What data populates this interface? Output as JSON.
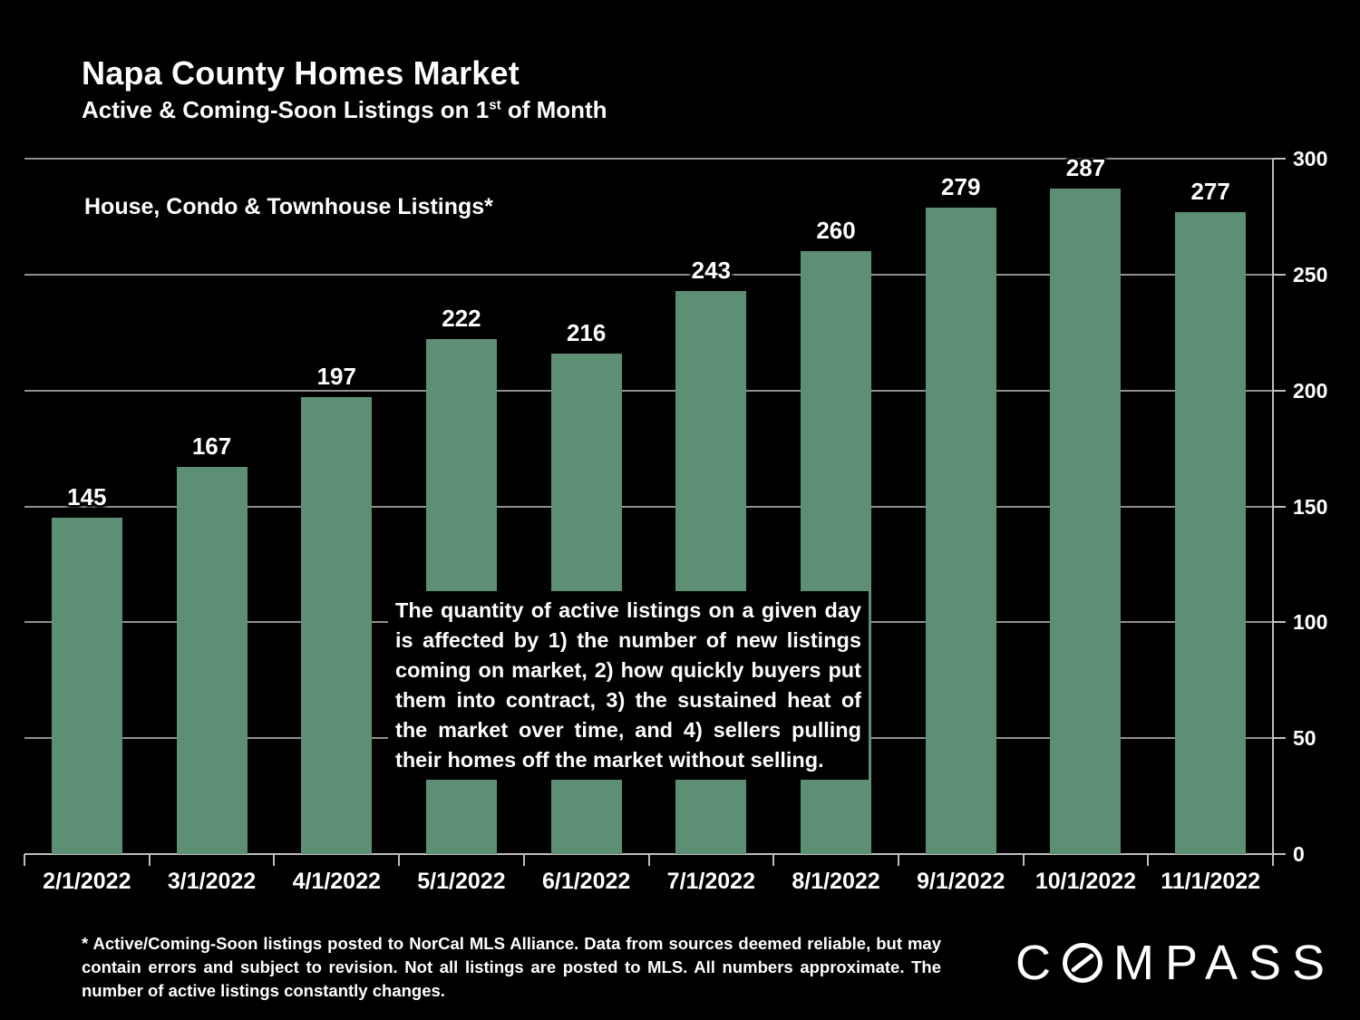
{
  "title": "Napa County Homes Market",
  "subtitle": {
    "pre": "Active & Coming-Soon Listings on 1",
    "sup": "st",
    "post": " of Month"
  },
  "series_label": "House, Condo & Townhouse Listings*",
  "annotation": {
    "lines": [
      "The quantity of active listings on a given day",
      "is affected by 1) the number of new listings",
      "coming on market, 2) how quickly buyers put",
      "them into contract, 3) the sustained heat of",
      "the market over time, and 4) sellers pulling",
      "their homes off the market without selling."
    ]
  },
  "footnote": {
    "lines": [
      "* Active/Coming-Soon listings posted to NorCal MLS Alliance.  Data from sources deemed reliable, but may",
      "contain errors and subject to revision.  Not all listings are posted to MLS. All numbers approximate. The",
      "number of active listings constantly changes."
    ]
  },
  "logo": {
    "prefix": "C",
    "suffix": "MPASS"
  },
  "colors": {
    "background": "#000000",
    "bar": "#5d8f75",
    "gridline": "#8f8f8f",
    "axis": "#bdbdbd",
    "text": "#ffffff"
  },
  "chart_data": {
    "type": "bar",
    "title": "Napa County Homes Market",
    "subtitle": "Active & Coming-Soon Listings on 1st of Month",
    "series_label": "House, Condo & Townhouse Listings*",
    "categories": [
      "2/1/2022",
      "3/1/2022",
      "4/1/2022",
      "5/1/2022",
      "6/1/2022",
      "7/1/2022",
      "8/1/2022",
      "9/1/2022",
      "10/1/2022",
      "11/1/2022"
    ],
    "values": [
      145,
      167,
      197,
      222,
      216,
      243,
      260,
      279,
      287,
      277
    ],
    "xlabel": "",
    "ylabel": "",
    "ylim": [
      0,
      300
    ],
    "yticks": [
      0,
      50,
      100,
      150,
      200,
      250,
      300
    ],
    "ytick_side": "right",
    "grid": true,
    "legend": false,
    "bar_color": "#5d8f75"
  }
}
